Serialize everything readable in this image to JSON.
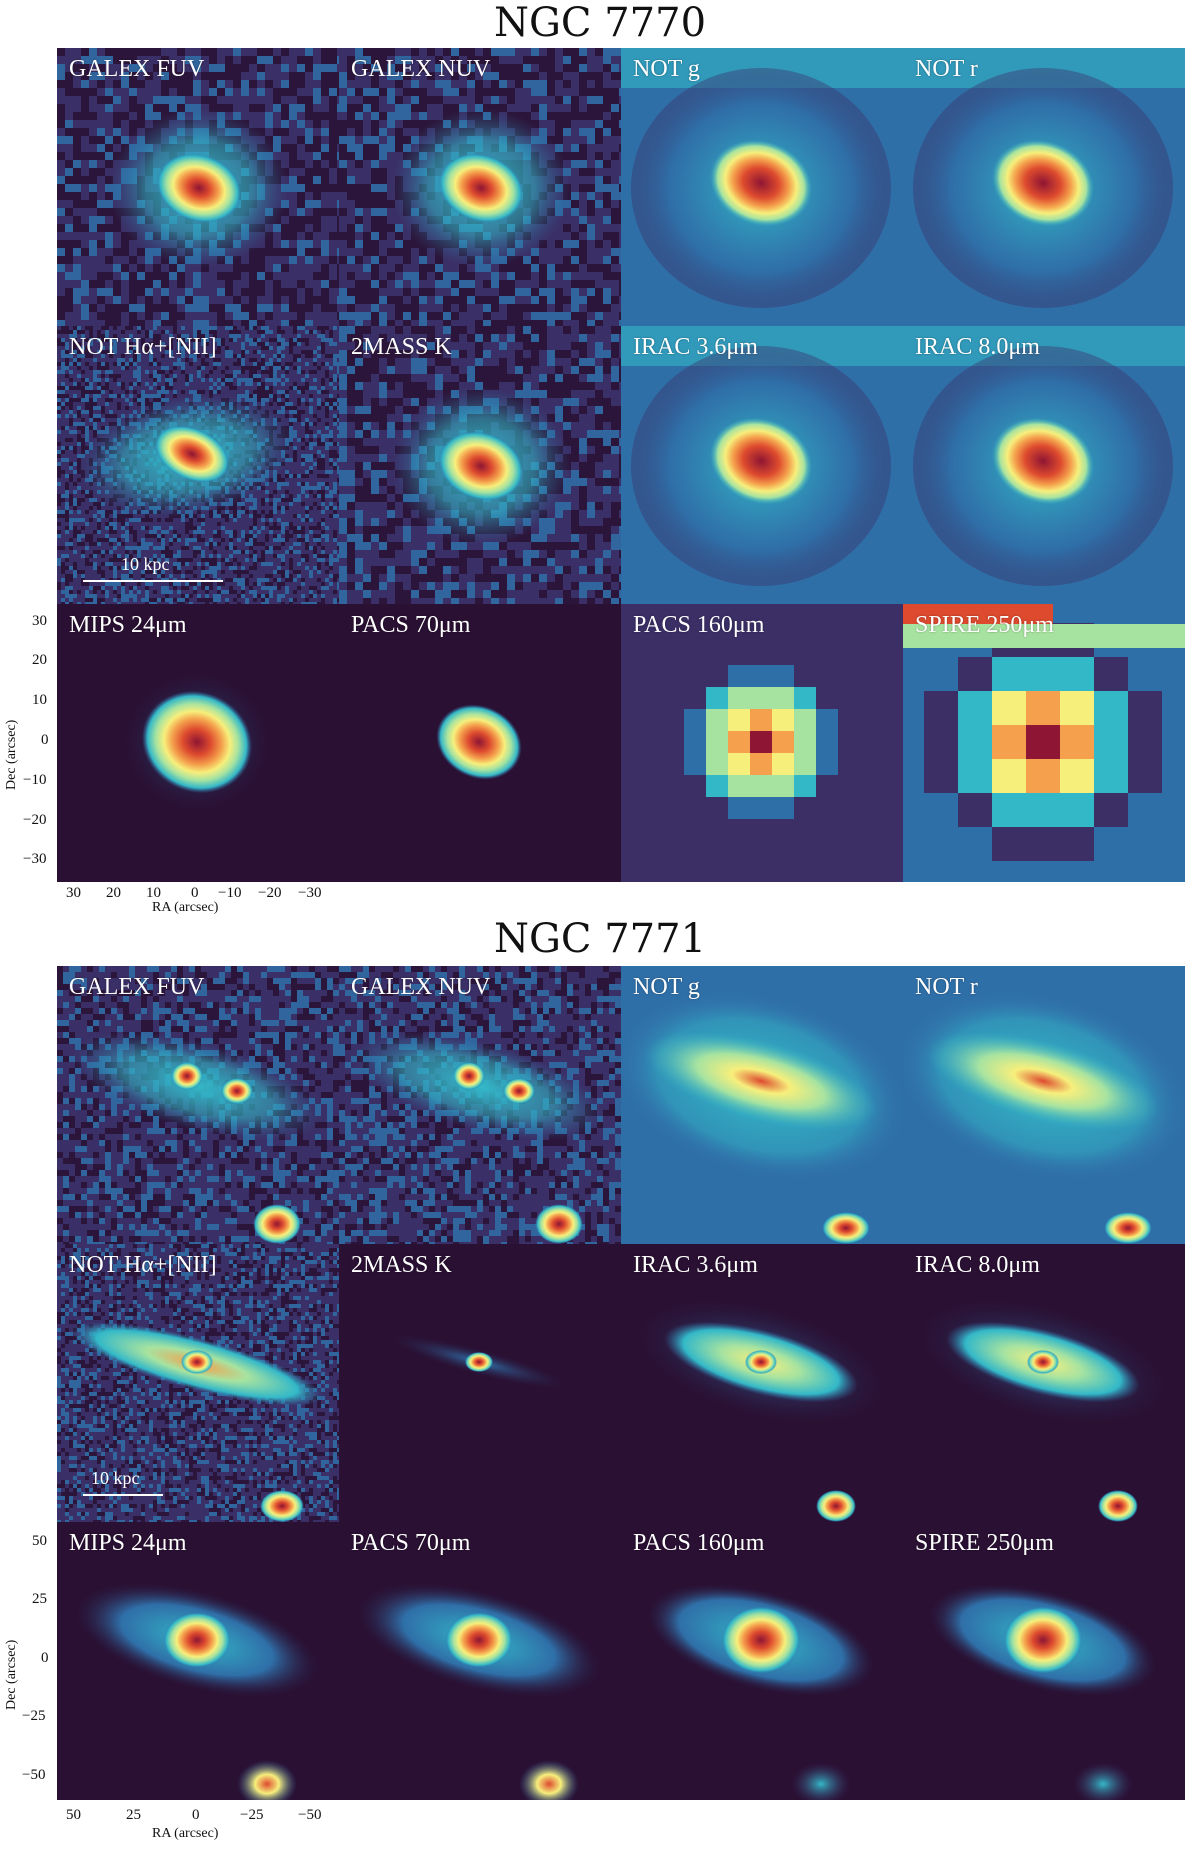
{
  "figures": [
    {
      "title": "NGC 7770",
      "panels": [
        {
          "label": "GALEX FUV",
          "icon": "galaxy-compact-noisy"
        },
        {
          "label": "GALEX NUV",
          "icon": "galaxy-compact-noisy"
        },
        {
          "label": "NOT g",
          "icon": "galaxy-compact-halo"
        },
        {
          "label": "NOT r",
          "icon": "galaxy-compact-halo"
        },
        {
          "label": "NOT Hα+[NII]",
          "icon": "galaxy-compact-knots"
        },
        {
          "label": "2MASS K",
          "icon": "galaxy-compact-noisy"
        },
        {
          "label": "IRAC 3.6μm",
          "icon": "galaxy-compact-halo"
        },
        {
          "label": "IRAC 8.0μm",
          "icon": "galaxy-compact-halo"
        },
        {
          "label": "MIPS 24μm",
          "icon": "galaxy-compact-smooth"
        },
        {
          "label": "PACS 70μm",
          "icon": "galaxy-compact-smooth"
        },
        {
          "label": "PACS 160μm",
          "icon": "galaxy-compact-pixelated"
        },
        {
          "label": "SPIRE 250μm",
          "icon": "galaxy-compact-pixelated"
        }
      ],
      "scale_bar": "10 kpc",
      "y_ticks": [
        "30",
        "20",
        "10",
        "0",
        "−10",
        "−20",
        "−30"
      ],
      "x_ticks": [
        "30",
        "20",
        "10",
        "0",
        "−10",
        "−20",
        "−30"
      ],
      "ylabel": "Dec (arcsec)",
      "xlabel": "RA (arcsec)"
    },
    {
      "title": "NGC 7771",
      "panels": [
        {
          "label": "GALEX FUV",
          "icon": "galaxy-edgeon-noisy"
        },
        {
          "label": "GALEX NUV",
          "icon": "galaxy-edgeon-noisy"
        },
        {
          "label": "NOT g",
          "icon": "galaxy-edgeon-halo"
        },
        {
          "label": "NOT r",
          "icon": "galaxy-edgeon-halo"
        },
        {
          "label": "NOT Hα+[NII]",
          "icon": "galaxy-edgeon-knots"
        },
        {
          "label": "2MASS K",
          "icon": "galaxy-edgeon-faint"
        },
        {
          "label": "IRAC 3.6μm",
          "icon": "galaxy-edgeon-disk"
        },
        {
          "label": "IRAC 8.0μm",
          "icon": "galaxy-edgeon-disk"
        },
        {
          "label": "MIPS 24μm",
          "icon": "galaxy-edgeon-smooth"
        },
        {
          "label": "PACS 70μm",
          "icon": "galaxy-edgeon-smooth"
        },
        {
          "label": "PACS 160μm",
          "icon": "galaxy-edgeon-pixelated"
        },
        {
          "label": "SPIRE 250μm",
          "icon": "galaxy-edgeon-pixelated"
        }
      ],
      "scale_bar": "10 kpc",
      "y_ticks": [
        "50",
        "25",
        "0",
        "−25",
        "−50"
      ],
      "x_ticks": [
        "50",
        "25",
        "0",
        "−25",
        "−50"
      ],
      "ylabel": "Dec (arcsec)",
      "xlabel": "RA (arcsec)"
    }
  ],
  "colormap": [
    "#2a1033",
    "#3b2f66",
    "#2f6fa8",
    "#33b8c8",
    "#a7e3a0",
    "#f7ef7c",
    "#f4a04c",
    "#dd4a2e",
    "#8e1533"
  ]
}
